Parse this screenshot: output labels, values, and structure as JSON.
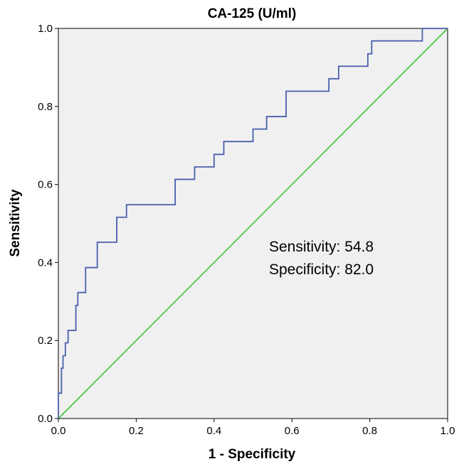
{
  "chart_data": {
    "type": "line",
    "title": "CA-125 (U/ml)",
    "xlabel": "1 - Specificity",
    "ylabel": "Sensitivity",
    "xlim": [
      0,
      1
    ],
    "ylim": [
      0,
      1
    ],
    "xticks": [
      "0.0",
      "0.2",
      "0.4",
      "0.6",
      "0.8",
      "1.0"
    ],
    "yticks": [
      "0.0",
      "0.2",
      "0.4",
      "0.6",
      "0.8",
      "1.0"
    ],
    "grid": false,
    "series": [
      {
        "kind": "roc",
        "color": "#4a5fae",
        "x": [
          0,
          0,
          0.008,
          0.008,
          0.012,
          0.012,
          0.018,
          0.018,
          0.025,
          0.025,
          0.03,
          0.03,
          0.045,
          0.045,
          0.05,
          0.05,
          0.06,
          0.06,
          0.07,
          0.07,
          0.1,
          0.1,
          0.15,
          0.15,
          0.165,
          0.165,
          0.175,
          0.175,
          0.3,
          0.3,
          0.33,
          0.33,
          0.35,
          0.35,
          0.375,
          0.375,
          0.4,
          0.4,
          0.425,
          0.425,
          0.5,
          0.5,
          0.535,
          0.535,
          0.585,
          0.585,
          0.695,
          0.695,
          0.72,
          0.72,
          0.795,
          0.795,
          0.805,
          0.805,
          0.935,
          0.935,
          1.0
        ],
        "y": [
          0,
          0.065,
          0.065,
          0.129,
          0.129,
          0.161,
          0.161,
          0.194,
          0.194,
          0.226,
          0.226,
          0.226,
          0.226,
          0.29,
          0.29,
          0.323,
          0.323,
          0.323,
          0.323,
          0.387,
          0.387,
          0.452,
          0.452,
          0.516,
          0.516,
          0.516,
          0.516,
          0.548,
          0.548,
          0.613,
          0.613,
          0.613,
          0.613,
          0.645,
          0.645,
          0.645,
          0.645,
          0.677,
          0.677,
          0.71,
          0.71,
          0.742,
          0.742,
          0.774,
          0.774,
          0.839,
          0.839,
          0.871,
          0.871,
          0.903,
          0.903,
          0.935,
          0.935,
          0.968,
          0.968,
          1.0,
          1.0
        ]
      },
      {
        "kind": "reference",
        "color": "#3cc63c",
        "x": [
          0,
          1
        ],
        "y": [
          0,
          1
        ]
      }
    ],
    "annotations": [
      "Sensitivity: 54.8",
      "Specificity: 82.0"
    ],
    "plot_background": "#f0f0f0"
  }
}
